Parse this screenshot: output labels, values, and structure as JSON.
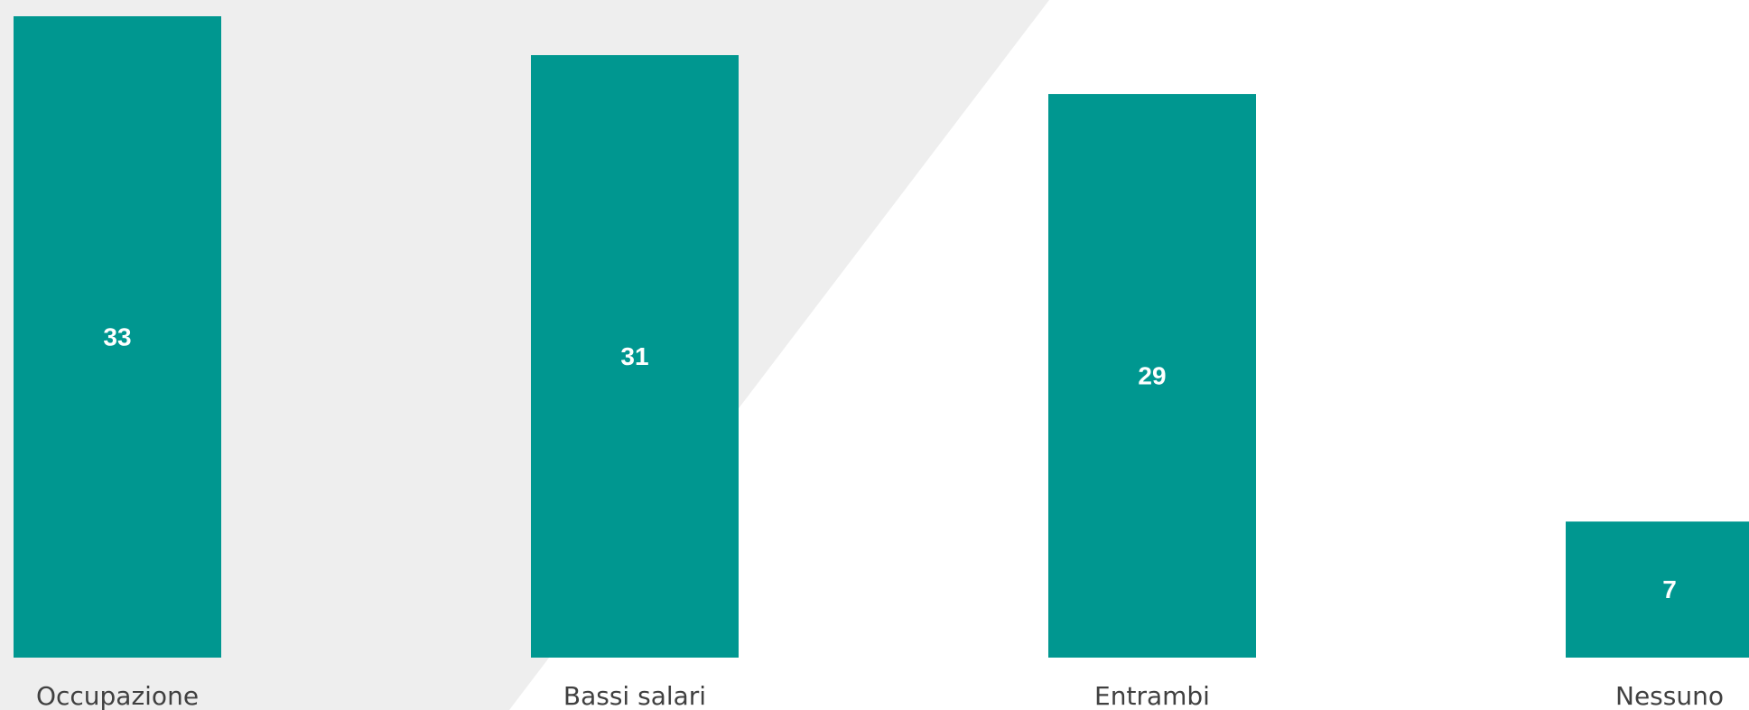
{
  "chart_data": {
    "type": "bar",
    "categories": [
      "Occupazione",
      "Bassi salari",
      "Entrambi",
      "Nessuno"
    ],
    "values": [
      33,
      31,
      29,
      7
    ],
    "data_labels": [
      "33",
      "31",
      "29",
      "7"
    ],
    "ylim": [
      0,
      33
    ],
    "grid": false,
    "legend": "none"
  },
  "colors": {
    "bar": "#009790",
    "background_shape": "#eeeeee",
    "background": "#ffffff",
    "value_text": "#ffffff",
    "category_text": "#404040"
  }
}
